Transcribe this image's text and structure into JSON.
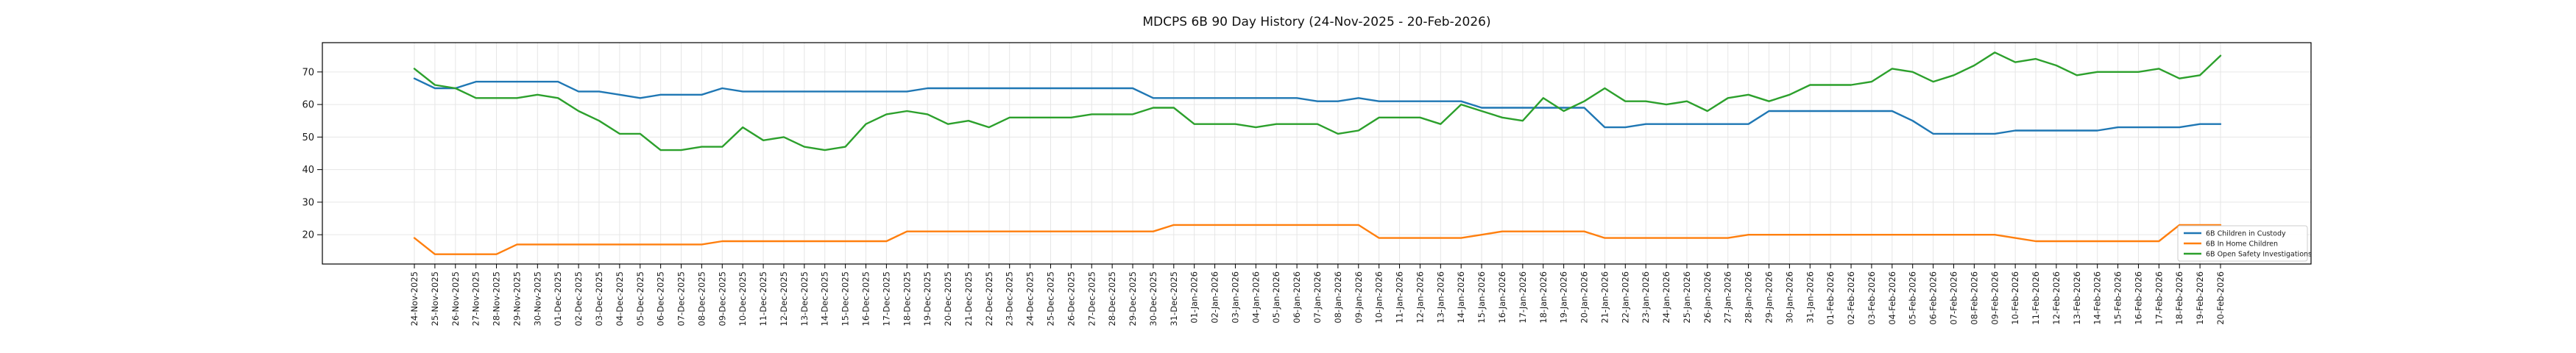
{
  "title": "MDCPS 6B 90 Day History (24-Nov-2025 - 20-Feb-2026)",
  "chart_data": {
    "type": "line",
    "x": [
      "24-Nov-2025",
      "25-Nov-2025",
      "26-Nov-2025",
      "27-Nov-2025",
      "28-Nov-2025",
      "29-Nov-2025",
      "30-Nov-2025",
      "01-Dec-2025",
      "02-Dec-2025",
      "03-Dec-2025",
      "04-Dec-2025",
      "05-Dec-2025",
      "06-Dec-2025",
      "07-Dec-2025",
      "08-Dec-2025",
      "09-Dec-2025",
      "10-Dec-2025",
      "11-Dec-2025",
      "12-Dec-2025",
      "13-Dec-2025",
      "14-Dec-2025",
      "15-Dec-2025",
      "16-Dec-2025",
      "17-Dec-2025",
      "18-Dec-2025",
      "19-Dec-2025",
      "20-Dec-2025",
      "21-Dec-2025",
      "22-Dec-2025",
      "23-Dec-2025",
      "24-Dec-2025",
      "25-Dec-2025",
      "26-Dec-2025",
      "27-Dec-2025",
      "28-Dec-2025",
      "29-Dec-2025",
      "30-Dec-2025",
      "31-Dec-2025",
      "01-Jan-2026",
      "02-Jan-2026",
      "03-Jan-2026",
      "04-Jan-2026",
      "05-Jan-2026",
      "06-Jan-2026",
      "07-Jan-2026",
      "08-Jan-2026",
      "09-Jan-2026",
      "10-Jan-2026",
      "11-Jan-2026",
      "12-Jan-2026",
      "13-Jan-2026",
      "14-Jan-2026",
      "15-Jan-2026",
      "16-Jan-2026",
      "17-Jan-2026",
      "18-Jan-2026",
      "19-Jan-2026",
      "20-Jan-2026",
      "21-Jan-2026",
      "22-Jan-2026",
      "23-Jan-2026",
      "24-Jan-2026",
      "25-Jan-2026",
      "26-Jan-2026",
      "27-Jan-2026",
      "28-Jan-2026",
      "29-Jan-2026",
      "30-Jan-2026",
      "31-Jan-2026",
      "01-Feb-2026",
      "02-Feb-2026",
      "03-Feb-2026",
      "04-Feb-2026",
      "05-Feb-2026",
      "06-Feb-2026",
      "07-Feb-2026",
      "08-Feb-2026",
      "09-Feb-2026",
      "10-Feb-2026",
      "11-Feb-2026",
      "12-Feb-2026",
      "13-Feb-2026",
      "14-Feb-2026",
      "15-Feb-2026",
      "16-Feb-2026",
      "17-Feb-2026",
      "18-Feb-2026",
      "19-Feb-2026",
      "20-Feb-2026"
    ],
    "series": [
      {
        "name": "6B Children in Custody",
        "color": "#1f77b4",
        "values": [
          68,
          65,
          65,
          67,
          67,
          67,
          67,
          67,
          64,
          64,
          63,
          62,
          63,
          63,
          63,
          65,
          64,
          64,
          64,
          64,
          64,
          64,
          64,
          64,
          64,
          65,
          65,
          65,
          65,
          65,
          65,
          65,
          65,
          65,
          65,
          65,
          62,
          62,
          62,
          62,
          62,
          62,
          62,
          62,
          61,
          61,
          62,
          61,
          61,
          61,
          61,
          61,
          59,
          59,
          59,
          59,
          59,
          59,
          53,
          53,
          54,
          54,
          54,
          54,
          54,
          54,
          58,
          58,
          58,
          58,
          58,
          58,
          58,
          55,
          51,
          51,
          51,
          51,
          52,
          52,
          52,
          52,
          52,
          53,
          53,
          53,
          53,
          54,
          54
        ]
      },
      {
        "name": "6B In Home Children",
        "color": "#ff7f0e",
        "values": [
          19,
          14,
          14,
          14,
          14,
          17,
          17,
          17,
          17,
          17,
          17,
          17,
          17,
          17,
          17,
          18,
          18,
          18,
          18,
          18,
          18,
          18,
          18,
          18,
          21,
          21,
          21,
          21,
          21,
          21,
          21,
          21,
          21,
          21,
          21,
          21,
          21,
          23,
          23,
          23,
          23,
          23,
          23,
          23,
          23,
          23,
          23,
          19,
          19,
          19,
          19,
          19,
          20,
          21,
          21,
          21,
          21,
          21,
          19,
          19,
          19,
          19,
          19,
          19,
          19,
          20,
          20,
          20,
          20,
          20,
          20,
          20,
          20,
          20,
          20,
          20,
          20,
          20,
          19,
          18,
          18,
          18,
          18,
          18,
          18,
          18,
          23,
          23,
          23
        ]
      },
      {
        "name": "6B Open Safety Investigations",
        "color": "#2ca02c",
        "values": [
          71,
          66,
          65,
          62,
          62,
          62,
          63,
          62,
          58,
          55,
          51,
          51,
          46,
          46,
          47,
          47,
          53,
          49,
          50,
          47,
          46,
          47,
          54,
          57,
          58,
          57,
          54,
          55,
          53,
          56,
          56,
          56,
          56,
          57,
          57,
          57,
          59,
          59,
          54,
          54,
          54,
          53,
          54,
          54,
          54,
          51,
          52,
          56,
          56,
          56,
          54,
          60,
          58,
          56,
          55,
          62,
          58,
          61,
          65,
          61,
          61,
          60,
          61,
          58,
          62,
          63,
          61,
          63,
          66,
          66,
          66,
          67,
          71,
          70,
          67,
          69,
          72,
          76,
          73,
          74,
          72,
          69,
          70,
          70,
          70,
          71,
          68,
          69,
          75
        ]
      }
    ],
    "ylim": [
      11,
      79
    ],
    "yticks": [
      20,
      30,
      40,
      50,
      60,
      70
    ],
    "grid": true,
    "legend_position": "lower right",
    "xlabel": "",
    "ylabel": ""
  },
  "style": {
    "grid_color": "#e6e6e6",
    "spine_color": "#000000",
    "tick_label_color": "#1a1a1a",
    "legend_border_color": "#cccccc",
    "background": "#ffffff"
  }
}
